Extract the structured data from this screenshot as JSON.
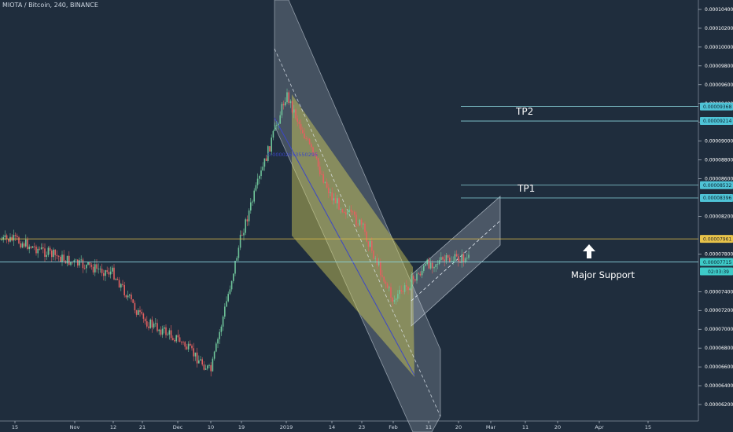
{
  "header": {
    "symbol_title": "MIOTA / Bitcoin, 240, BINANCE"
  },
  "colors": {
    "background": "#1f2d3d",
    "candle_up": "#6fc49a",
    "candle_down": "#e36060",
    "channel_fill": "#cfd8e3",
    "channel_yellow": "#d8d35a",
    "resistance_line": "#e8c34a",
    "target_line": "#8ad3dc",
    "current_price_badge": "#3ecac7",
    "target_badge": "#4fc3d6"
  },
  "chart_data": {
    "type": "candlestick",
    "title": "MIOTA / Bitcoin, 240, BINANCE",
    "xlabel": "",
    "ylabel": "",
    "ylim": [
      6.1e-05,
      0.0001048
    ],
    "grid": false,
    "x_ticks": [
      "15",
      "Nov",
      "12",
      "21",
      "Dec",
      "10",
      "19",
      "2019",
      "14",
      "23",
      "Feb",
      "11",
      "20",
      "Mar",
      "11",
      "20",
      "Apr",
      "15"
    ],
    "y_ticks": [
      "0.00010400",
      "0.00010200",
      "0.00010000",
      "0.00009800",
      "0.00009600",
      "0.00009400",
      "0.00009200",
      "0.00009000",
      "0.00008800",
      "0.00008600",
      "0.00008200",
      "0.00007800",
      "0.00007400",
      "0.00007200",
      "0.00007000",
      "0.00006800",
      "0.00006600",
      "0.00006400",
      "0.00006200"
    ],
    "price_path": [
      {
        "x": "15",
        "close": 7.95e-05
      },
      {
        "x": "Nov",
        "close": 7.7e-05
      },
      {
        "x": "12",
        "close": 7.6e-05
      },
      {
        "x": "21",
        "close": 7.1e-05
      },
      {
        "x": "Dec",
        "close": 6.9e-05
      },
      {
        "x": "10",
        "close": 6.55e-05
      },
      {
        "x": "19",
        "close": 8e-05
      },
      {
        "x": "2019",
        "close": 9.5e-05
      },
      {
        "x": "14",
        "close": 8.4e-05
      },
      {
        "x": "23",
        "close": 8.1e-05
      },
      {
        "x": "Feb",
        "close": 7.3e-05
      },
      {
        "x": "11",
        "close": 7.7e-05
      },
      {
        "x": "20",
        "close": 7.75e-05
      }
    ],
    "levels": [
      {
        "label": "0.00009368",
        "value": 9.368e-05,
        "name": "TP2"
      },
      {
        "label": "0.00009214",
        "value": 9.214e-05,
        "name": ""
      },
      {
        "label": "0.00008532",
        "value": 8.532e-05,
        "name": "TP1"
      },
      {
        "label": "0.00008396",
        "value": 8.396e-05,
        "name": ""
      },
      {
        "label": "0.00007961",
        "value": 7.961e-05,
        "name": ""
      },
      {
        "label": "0.00007715",
        "value": 7.715e-05,
        "name": "Major Support"
      }
    ],
    "current_time_label": "02:03:39",
    "annotations": {
      "tp1": "TP1",
      "tp2": "TP2",
      "support": "Major Support",
      "channel_note": "0.00002653550295"
    }
  }
}
